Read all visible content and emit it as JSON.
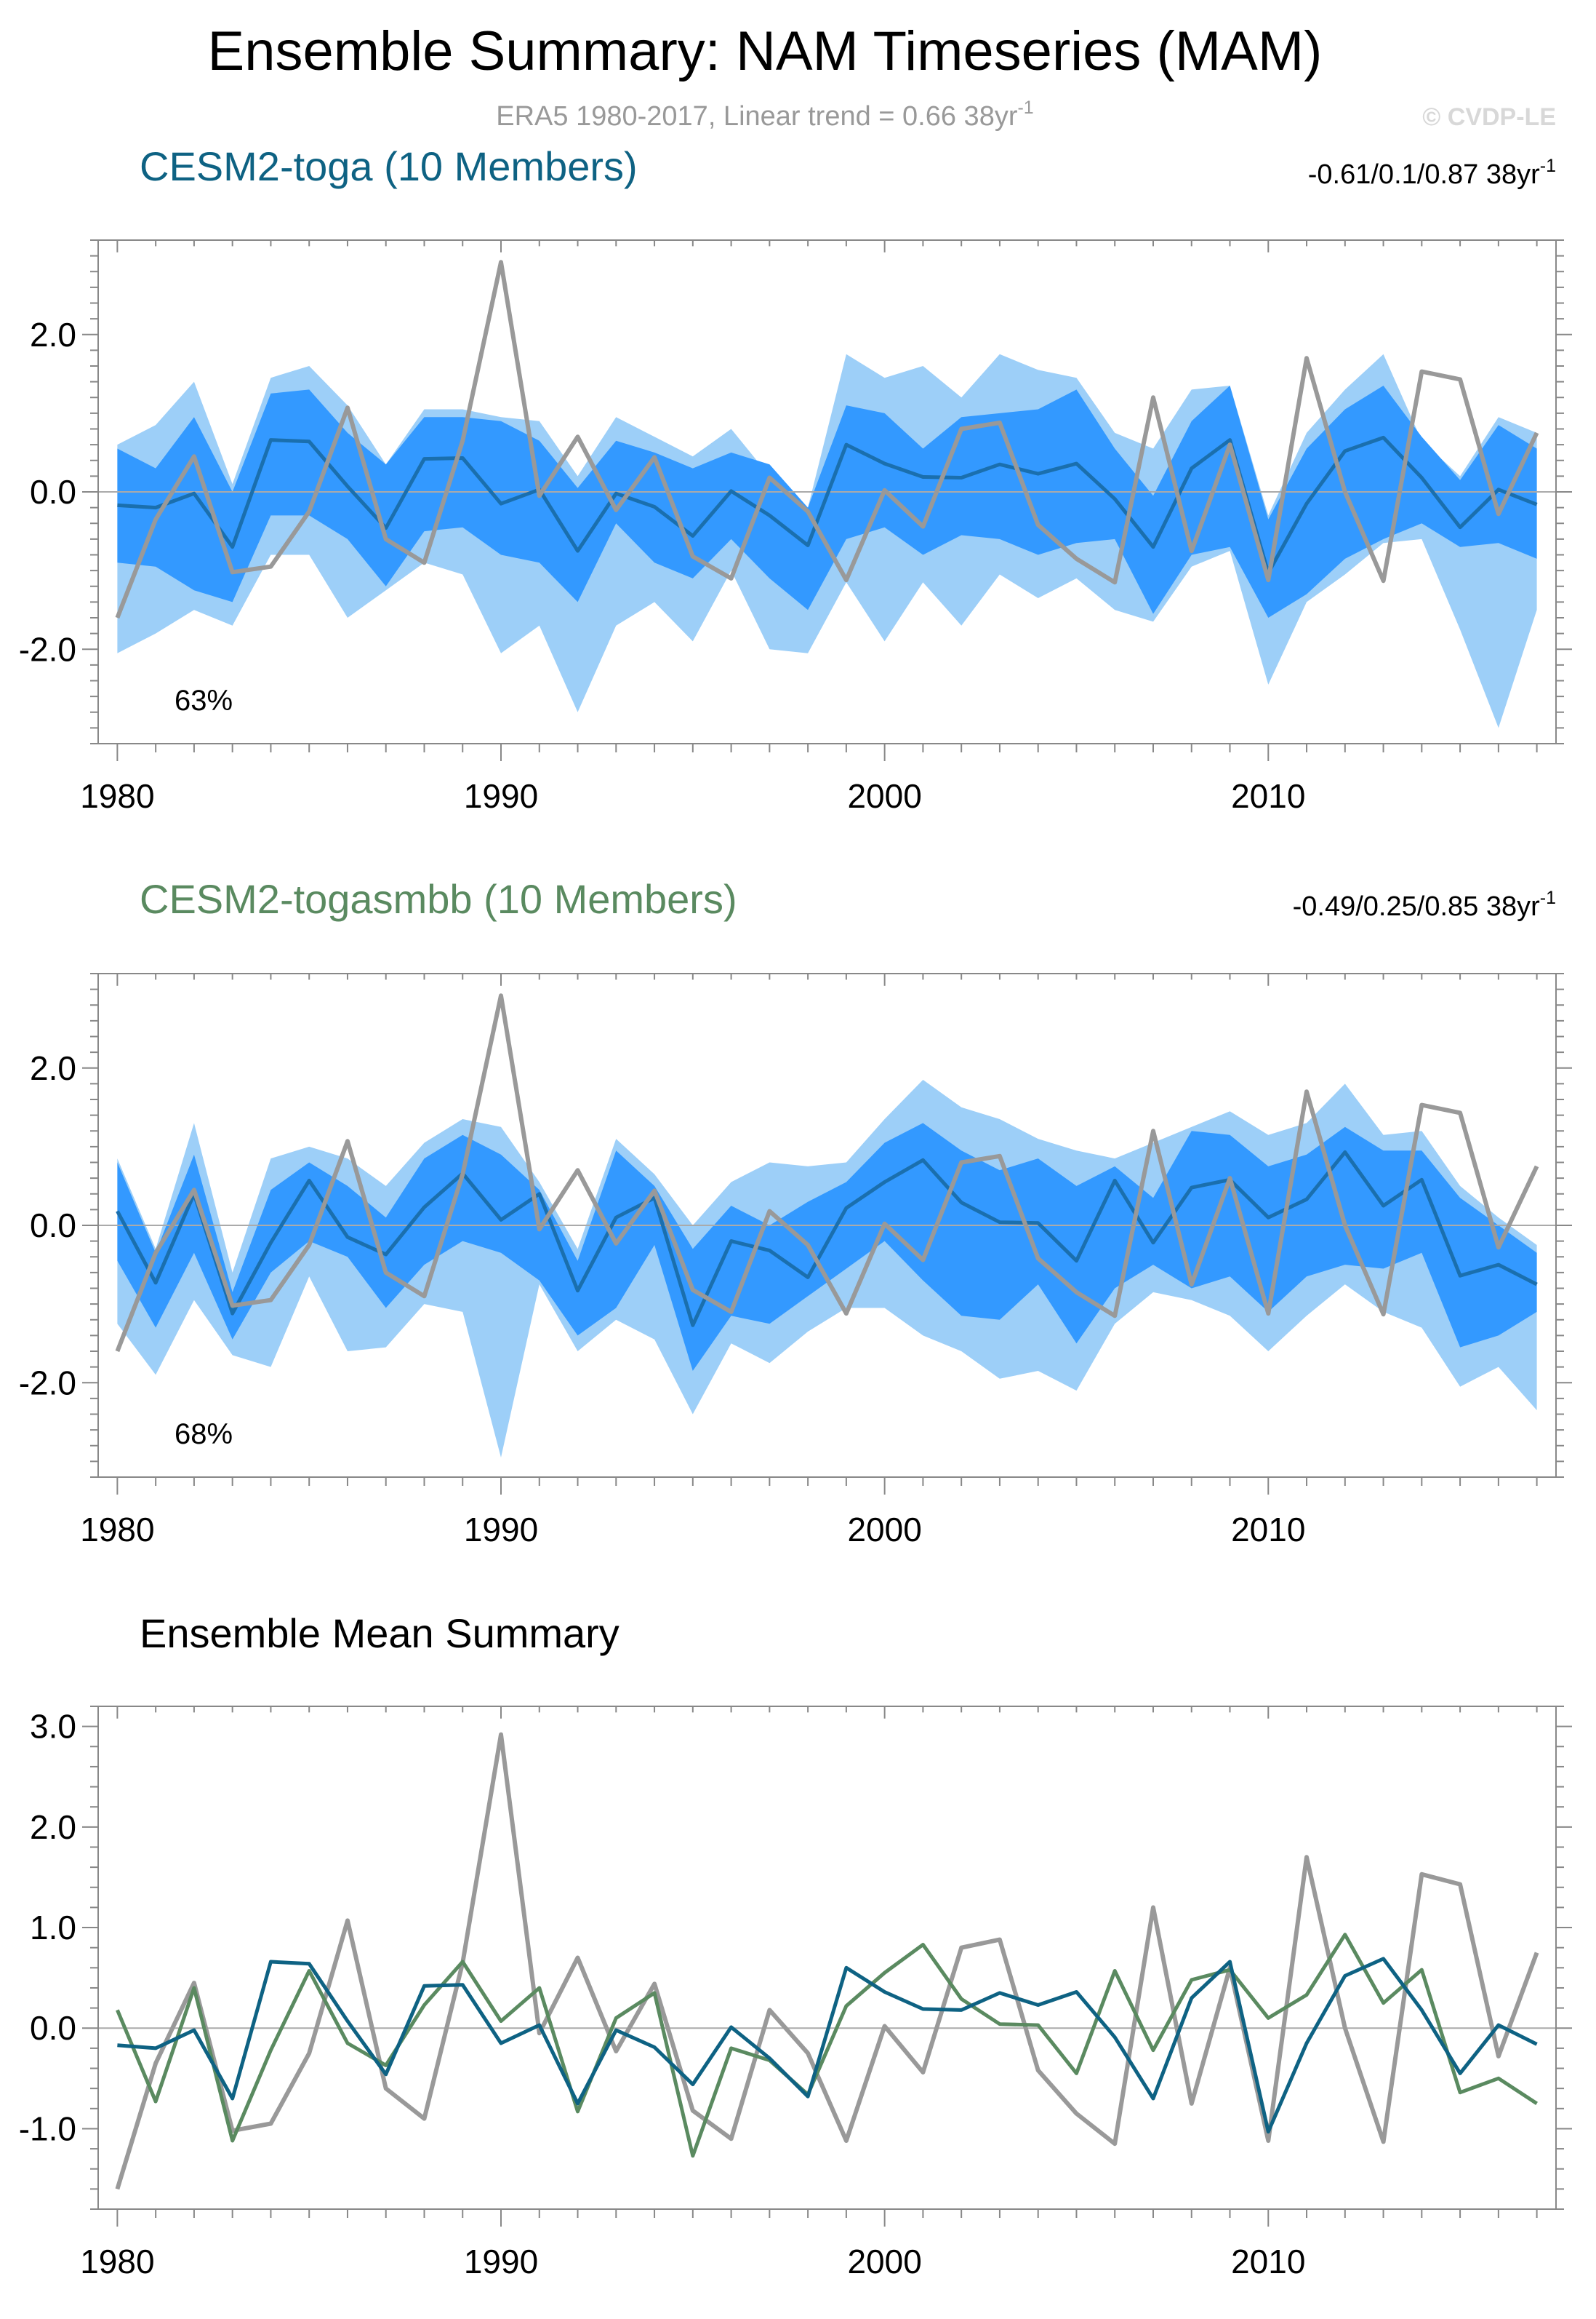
{
  "title": "Ensemble Summary: NAM Timeseries (MAM)",
  "subtitle": {
    "text": "ERA5 1980-2017, Linear trend = 0.66 38yr",
    "sup": "-1"
  },
  "watermark": "© CVDP-LE",
  "colors": {
    "toga": "#0e6283",
    "togasmbb": "#5a8a60",
    "obs": "#999999",
    "band_outer": "#9dcff8",
    "band_inner": "#3399ff",
    "mean_line": "#1a6fae",
    "zero_line": "#aaaaaa"
  },
  "chart_data": [
    {
      "type": "area",
      "id": "toga",
      "title": "CESM2-toga (10 Members)",
      "trend_text": "-0.61/0.1/0.87 38yr",
      "trend_sup": "-1",
      "percent_label": "63%",
      "x": [
        1980,
        1981,
        1982,
        1983,
        1984,
        1985,
        1986,
        1987,
        1988,
        1989,
        1990,
        1991,
        1992,
        1993,
        1994,
        1995,
        1996,
        1997,
        1998,
        1999,
        2000,
        2001,
        2002,
        2003,
        2004,
        2005,
        2006,
        2007,
        2008,
        2009,
        2010,
        2011,
        2012,
        2013,
        2014,
        2015,
        2016,
        2017
      ],
      "xlim": [
        1979.5,
        2017.5
      ],
      "xticks": [
        1980,
        1990,
        2000,
        2010
      ],
      "xtick_labels": [
        "1980",
        "1990",
        "2000",
        "2010"
      ],
      "ylim": [
        -3.2,
        3.2
      ],
      "yticks": [
        -2.0,
        0.0,
        2.0
      ],
      "ytick_labels": [
        "-2.0",
        "0.0",
        "2.0"
      ],
      "outer_upper": [
        0.6,
        0.85,
        1.4,
        0.1,
        1.45,
        1.6,
        1.1,
        0.35,
        1.05,
        1.05,
        0.95,
        0.9,
        0.2,
        0.95,
        0.7,
        0.45,
        0.8,
        0.2,
        -0.2,
        1.75,
        1.45,
        1.6,
        1.2,
        1.75,
        1.55,
        1.45,
        0.75,
        0.55,
        1.3,
        1.35,
        -0.3,
        0.75,
        1.3,
        1.75,
        0.65,
        0.2,
        0.95,
        0.75
      ],
      "inner_upper": [
        0.55,
        0.3,
        0.95,
        0.0,
        1.25,
        1.3,
        0.75,
        0.35,
        0.95,
        0.95,
        0.9,
        0.65,
        0.05,
        0.65,
        0.5,
        0.3,
        0.5,
        0.35,
        -0.2,
        1.1,
        1.0,
        0.55,
        0.95,
        1.0,
        1.05,
        1.3,
        0.55,
        -0.05,
        0.9,
        1.35,
        -0.35,
        0.55,
        1.05,
        1.35,
        0.7,
        0.15,
        0.85,
        0.55
      ],
      "inner_lower": [
        -0.9,
        -0.95,
        -1.25,
        -1.4,
        -0.3,
        -0.3,
        -0.6,
        -1.2,
        -0.5,
        -0.45,
        -0.8,
        -0.9,
        -1.4,
        -0.4,
        -0.9,
        -1.1,
        -0.6,
        -1.1,
        -1.5,
        -0.6,
        -0.45,
        -0.8,
        -0.55,
        -0.6,
        -0.8,
        -0.65,
        -0.6,
        -1.55,
        -0.8,
        -0.7,
        -1.6,
        -1.3,
        -0.85,
        -0.6,
        -0.4,
        -0.7,
        -0.65,
        -0.85
      ],
      "outer_lower": [
        -2.05,
        -1.8,
        -1.5,
        -1.7,
        -0.8,
        -0.8,
        -1.6,
        -1.25,
        -0.9,
        -1.05,
        -2.05,
        -1.7,
        -2.8,
        -1.7,
        -1.4,
        -1.9,
        -1.0,
        -2.0,
        -2.05,
        -1.15,
        -1.9,
        -1.15,
        -1.7,
        -1.05,
        -1.35,
        -1.1,
        -1.5,
        -1.65,
        -0.95,
        -0.75,
        -2.45,
        -1.4,
        -1.05,
        -0.65,
        -0.6,
        -1.75,
        -3.0,
        -1.5
      ],
      "mean": [
        -0.17,
        -0.2,
        -0.02,
        -0.7,
        0.66,
        0.64,
        0.07,
        -0.46,
        0.42,
        0.43,
        -0.15,
        0.03,
        -0.75,
        -0.02,
        -0.19,
        -0.56,
        0.01,
        -0.3,
        -0.68,
        0.6,
        0.36,
        0.19,
        0.18,
        0.35,
        0.23,
        0.36,
        -0.09,
        -0.7,
        0.3,
        0.66,
        -1.03,
        -0.15,
        0.52,
        0.69,
        0.18,
        -0.45,
        0.03,
        -0.16
      ],
      "obs": [
        -1.6,
        -0.35,
        0.45,
        -1.02,
        -0.95,
        -0.25,
        1.07,
        -0.6,
        -0.9,
        0.65,
        2.92,
        -0.05,
        0.7,
        -0.23,
        0.44,
        -0.82,
        -1.1,
        0.18,
        -0.25,
        -1.12,
        0.02,
        -0.44,
        0.8,
        0.88,
        -0.42,
        -0.85,
        -1.15,
        1.2,
        -0.75,
        0.6,
        -1.12,
        1.7,
        0.0,
        -1.13,
        1.53,
        1.43,
        -0.28,
        0.75
      ]
    },
    {
      "type": "area",
      "id": "togasmbb",
      "title": "CESM2-togasmbb (10 Members)",
      "trend_text": "-0.49/0.25/0.85 38yr",
      "trend_sup": "-1",
      "percent_label": "68%",
      "x": [
        1980,
        1981,
        1982,
        1983,
        1984,
        1985,
        1986,
        1987,
        1988,
        1989,
        1990,
        1991,
        1992,
        1993,
        1994,
        1995,
        1996,
        1997,
        1998,
        1999,
        2000,
        2001,
        2002,
        2003,
        2004,
        2005,
        2006,
        2007,
        2008,
        2009,
        2010,
        2011,
        2012,
        2013,
        2014,
        2015,
        2016,
        2017
      ],
      "xlim": [
        1979.5,
        2017.5
      ],
      "xticks": [
        1980,
        1990,
        2000,
        2010
      ],
      "xtick_labels": [
        "1980",
        "1990",
        "2000",
        "2010"
      ],
      "ylim": [
        -3.2,
        3.2
      ],
      "yticks": [
        -2.0,
        0.0,
        2.0
      ],
      "ytick_labels": [
        "-2.0",
        "0.0",
        "2.0"
      ],
      "outer_upper": [
        0.85,
        -0.3,
        1.3,
        -0.6,
        0.85,
        1.0,
        0.85,
        0.5,
        1.05,
        1.35,
        1.25,
        0.55,
        -0.3,
        1.1,
        0.65,
        0.0,
        0.55,
        0.8,
        0.75,
        0.8,
        1.35,
        1.85,
        1.5,
        1.35,
        1.1,
        0.95,
        0.85,
        1.05,
        1.25,
        1.45,
        1.15,
        1.3,
        1.8,
        1.15,
        1.2,
        0.5,
        0.1,
        -0.25
      ],
      "inner_upper": [
        0.8,
        -0.35,
        0.9,
        -0.85,
        0.45,
        0.8,
        0.5,
        0.1,
        0.85,
        1.15,
        0.9,
        0.45,
        -0.45,
        0.95,
        0.5,
        -0.3,
        0.25,
        0.0,
        0.3,
        0.55,
        1.05,
        1.3,
        0.95,
        0.7,
        0.85,
        0.5,
        0.75,
        0.35,
        1.2,
        1.15,
        0.75,
        0.9,
        1.25,
        0.95,
        0.95,
        0.35,
        0.0,
        -0.35
      ],
      "inner_lower": [
        -0.45,
        -1.3,
        -0.35,
        -1.45,
        -0.6,
        -0.2,
        -0.4,
        -1.05,
        -0.5,
        -0.2,
        -0.35,
        -0.7,
        -1.4,
        -1.05,
        -0.25,
        -1.85,
        -1.15,
        -1.25,
        -0.9,
        -0.55,
        -0.2,
        -0.7,
        -1.15,
        -1.2,
        -0.75,
        -1.5,
        -0.8,
        -0.5,
        -0.8,
        -0.65,
        -1.1,
        -0.65,
        -0.5,
        -0.55,
        -0.35,
        -1.55,
        -1.4,
        -1.1
      ],
      "outer_lower": [
        -1.25,
        -1.9,
        -0.95,
        -1.65,
        -1.8,
        -0.65,
        -1.6,
        -1.55,
        -1.0,
        -1.1,
        -2.95,
        -0.75,
        -1.6,
        -1.2,
        -1.45,
        -2.4,
        -1.5,
        -1.75,
        -1.35,
        -1.05,
        -1.05,
        -1.4,
        -1.6,
        -1.95,
        -1.85,
        -2.1,
        -1.25,
        -0.85,
        -0.95,
        -1.15,
        -1.6,
        -1.15,
        -0.75,
        -1.1,
        -1.3,
        -2.05,
        -1.8,
        -2.35
      ],
      "mean": [
        0.18,
        -0.73,
        0.4,
        -1.12,
        -0.22,
        0.57,
        -0.15,
        -0.37,
        0.23,
        0.66,
        0.07,
        0.4,
        -0.83,
        0.1,
        0.35,
        -1.27,
        -0.2,
        -0.32,
        -0.66,
        0.22,
        0.55,
        0.83,
        0.29,
        0.04,
        0.03,
        -0.45,
        0.57,
        -0.22,
        0.48,
        0.58,
        0.1,
        0.33,
        0.93,
        0.25,
        0.58,
        -0.64,
        -0.5,
        -0.75
      ],
      "obs": [
        -1.6,
        -0.35,
        0.45,
        -1.02,
        -0.95,
        -0.25,
        1.07,
        -0.6,
        -0.9,
        0.65,
        2.92,
        -0.05,
        0.7,
        -0.23,
        0.44,
        -0.82,
        -1.1,
        0.18,
        -0.25,
        -1.12,
        0.02,
        -0.44,
        0.8,
        0.88,
        -0.42,
        -0.85,
        -1.15,
        1.2,
        -0.75,
        0.6,
        -1.12,
        1.7,
        0.0,
        -1.13,
        1.53,
        1.43,
        -0.28,
        0.75
      ]
    },
    {
      "type": "line",
      "id": "summary",
      "title": "Ensemble Mean Summary",
      "x": [
        1980,
        1981,
        1982,
        1983,
        1984,
        1985,
        1986,
        1987,
        1988,
        1989,
        1990,
        1991,
        1992,
        1993,
        1994,
        1995,
        1996,
        1997,
        1998,
        1999,
        2000,
        2001,
        2002,
        2003,
        2004,
        2005,
        2006,
        2007,
        2008,
        2009,
        2010,
        2011,
        2012,
        2013,
        2014,
        2015,
        2016,
        2017
      ],
      "xlim": [
        1979.5,
        2017.5
      ],
      "xticks": [
        1980,
        1990,
        2000,
        2010
      ],
      "xtick_labels": [
        "1980",
        "1990",
        "2000",
        "2010"
      ],
      "ylim": [
        -1.8,
        3.2
      ],
      "yticks": [
        -1.0,
        0.0,
        1.0,
        2.0,
        3.0
      ],
      "ytick_labels": [
        "-1.0",
        "0.0",
        "1.0",
        "2.0",
        "3.0"
      ],
      "series": [
        {
          "name": "ERA5",
          "color_key": "obs",
          "values": [
            -1.6,
            -0.35,
            0.45,
            -1.02,
            -0.95,
            -0.25,
            1.07,
            -0.6,
            -0.9,
            0.65,
            2.92,
            -0.05,
            0.7,
            -0.23,
            0.44,
            -0.82,
            -1.1,
            0.18,
            -0.25,
            -1.12,
            0.02,
            -0.44,
            0.8,
            0.88,
            -0.42,
            -0.85,
            -1.15,
            1.2,
            -0.75,
            0.6,
            -1.12,
            1.7,
            0.0,
            -1.13,
            1.53,
            1.43,
            -0.28,
            0.75
          ]
        },
        {
          "name": "CESM2-togasmbb",
          "color_key": "togasmbb",
          "values": [
            0.18,
            -0.73,
            0.4,
            -1.12,
            -0.22,
            0.57,
            -0.15,
            -0.37,
            0.23,
            0.66,
            0.07,
            0.4,
            -0.83,
            0.1,
            0.35,
            -1.27,
            -0.2,
            -0.32,
            -0.66,
            0.22,
            0.55,
            0.83,
            0.29,
            0.04,
            0.03,
            -0.45,
            0.57,
            -0.22,
            0.48,
            0.58,
            0.1,
            0.33,
            0.93,
            0.25,
            0.58,
            -0.64,
            -0.5,
            -0.75
          ]
        },
        {
          "name": "CESM2-toga",
          "color_key": "toga",
          "values": [
            -0.17,
            -0.2,
            -0.02,
            -0.7,
            0.66,
            0.64,
            0.07,
            -0.46,
            0.42,
            0.43,
            -0.15,
            0.03,
            -0.75,
            -0.02,
            -0.19,
            -0.56,
            0.01,
            -0.3,
            -0.68,
            0.6,
            0.36,
            0.19,
            0.18,
            0.35,
            0.23,
            0.36,
            -0.09,
            -0.7,
            0.3,
            0.66,
            -1.03,
            -0.15,
            0.52,
            0.69,
            0.18,
            -0.45,
            0.03,
            -0.16
          ]
        }
      ]
    }
  ]
}
